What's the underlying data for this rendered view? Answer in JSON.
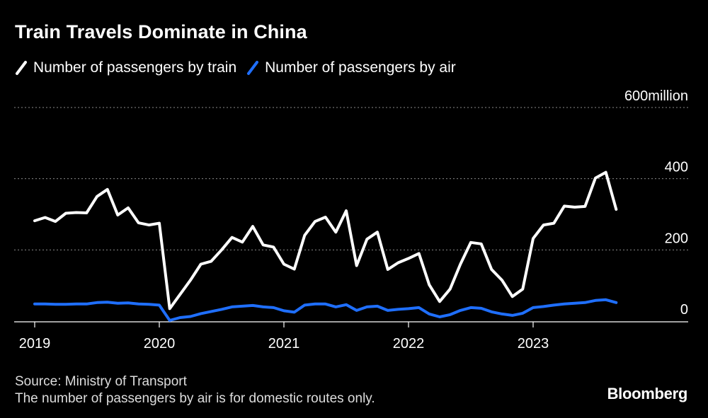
{
  "title": "Train Travels Dominate in China",
  "legend": [
    {
      "label": "Number of passengers by train",
      "color": "#ffffff"
    },
    {
      "label": "Number of passengers by air",
      "color": "#1f6fff"
    }
  ],
  "footer": {
    "source": "Source: Ministry of Transport",
    "note": "The number of passengers by air is for domestic routes only."
  },
  "brand": "Bloomberg",
  "chart_data": {
    "type": "line",
    "title": "Train Travels Dominate in China",
    "xlabel": "",
    "ylabel": "",
    "ylim": [
      0,
      600
    ],
    "xlim": [
      "2019-01",
      "2024-01"
    ],
    "y_unit_label": "million",
    "y_ticks": [
      0,
      200,
      400,
      600
    ],
    "x_ticks": [
      "2019",
      "2020",
      "2021",
      "2022",
      "2023"
    ],
    "grid": "horizontal dotted",
    "legend_position": "top-left",
    "x": [
      "2019-01",
      "2019-02",
      "2019-03",
      "2019-04",
      "2019-05",
      "2019-06",
      "2019-07",
      "2019-08",
      "2019-09",
      "2019-10",
      "2019-11",
      "2019-12",
      "2020-01",
      "2020-02",
      "2020-03",
      "2020-04",
      "2020-05",
      "2020-06",
      "2020-07",
      "2020-08",
      "2020-09",
      "2020-10",
      "2020-11",
      "2020-12",
      "2021-01",
      "2021-02",
      "2021-03",
      "2021-04",
      "2021-05",
      "2021-06",
      "2021-07",
      "2021-08",
      "2021-09",
      "2021-10",
      "2021-11",
      "2021-12",
      "2022-01",
      "2022-02",
      "2022-03",
      "2022-04",
      "2022-05",
      "2022-06",
      "2022-07",
      "2022-08",
      "2022-09",
      "2022-10",
      "2022-11",
      "2022-12",
      "2023-01",
      "2023-02",
      "2023-03",
      "2023-04",
      "2023-05",
      "2023-06",
      "2023-07",
      "2023-08",
      "2023-09"
    ],
    "series": [
      {
        "name": "Number of passengers by train",
        "color": "#ffffff",
        "values": [
          282,
          291,
          280,
          303,
          305,
          304,
          350,
          370,
          298,
          318,
          276,
          270,
          275,
          35,
          75,
          115,
          160,
          168,
          200,
          235,
          222,
          266,
          214,
          208,
          160,
          146,
          241,
          280,
          292,
          250,
          310,
          156,
          230,
          250,
          145,
          164,
          176,
          190,
          102,
          55,
          90,
          160,
          221,
          217,
          145,
          115,
          69,
          90,
          232,
          270,
          275,
          323,
          320,
          322,
          402,
          418,
          314
        ]
      },
      {
        "name": "Number of passengers by air",
        "color": "#1f6fff",
        "values": [
          48,
          48,
          47,
          47,
          48,
          48,
          52,
          53,
          50,
          51,
          48,
          47,
          45,
          2,
          10,
          13,
          21,
          27,
          33,
          40,
          42,
          44,
          40,
          38,
          29,
          25,
          45,
          48,
          48,
          40,
          46,
          30,
          40,
          42,
          30,
          33,
          35,
          38,
          20,
          12,
          18,
          30,
          38,
          36,
          26,
          20,
          16,
          22,
          38,
          41,
          45,
          48,
          50,
          52,
          58,
          60,
          52
        ]
      }
    ]
  }
}
